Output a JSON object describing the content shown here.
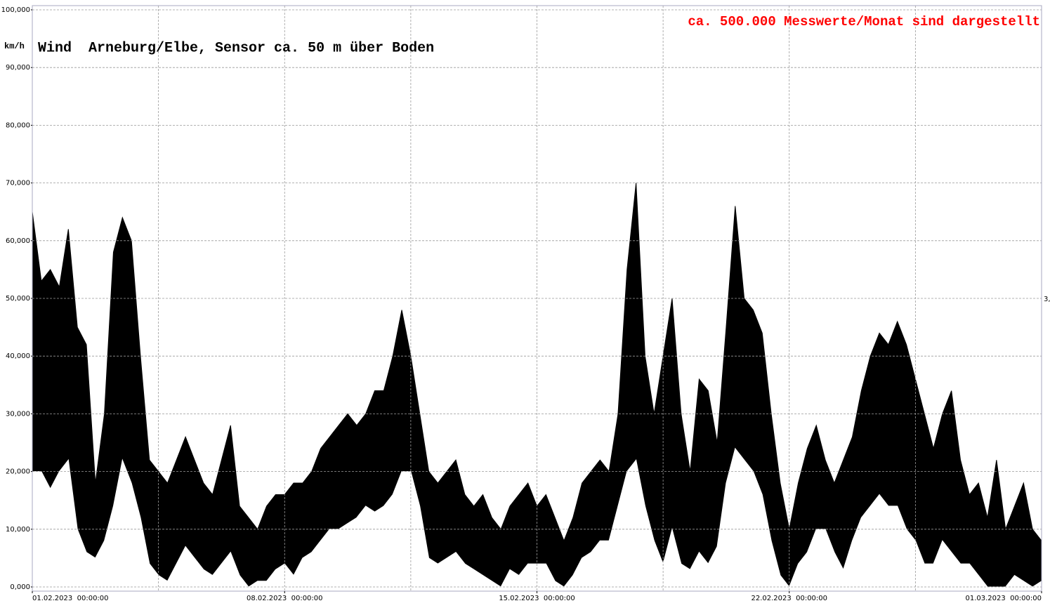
{
  "chart_data": {
    "type": "range",
    "title": "Wind  Arneburg/Elbe, Sensor ca. 50 m über Boden",
    "y_label": "km/h",
    "annotation": "ca. 500.000 Messwerte/Monat sind dargestellt",
    "right_label": "3,",
    "color": "#000000",
    "xlim": [
      0,
      28
    ],
    "xgrid_step": 3.5,
    "xticks": [
      {
        "value": 0,
        "label": "01.02.2023  00:00:00"
      },
      {
        "value": 7,
        "label": "08.02.2023  00:00:00"
      },
      {
        "value": 14,
        "label": "15.02.2023  00:00:00"
      },
      {
        "value": 21,
        "label": "22.02.2023  00:00:00"
      },
      {
        "value": 28,
        "label": "01.03.2023  00:00:00"
      }
    ],
    "ylim": [
      0,
      100
    ],
    "yticks": [
      {
        "value": 0,
        "label": "0,000"
      },
      {
        "value": 10,
        "label": "10,000"
      },
      {
        "value": 20,
        "label": "20,000"
      },
      {
        "value": 30,
        "label": "30,000"
      },
      {
        "value": 40,
        "label": "40,000"
      },
      {
        "value": 50,
        "label": "50,000"
      },
      {
        "value": 60,
        "label": "60,000"
      },
      {
        "value": 70,
        "label": "70,000"
      },
      {
        "value": 80,
        "label": "80,000"
      },
      {
        "value": 90,
        "label": "90,000"
      },
      {
        "value": 100,
        "label": "100,000"
      }
    ],
    "grid": true,
    "x": [
      0,
      0.25,
      0.5,
      0.75,
      1,
      1.25,
      1.5,
      1.75,
      2,
      2.25,
      2.5,
      2.75,
      3,
      3.25,
      3.5,
      3.75,
      4,
      4.25,
      4.5,
      4.75,
      5,
      5.25,
      5.5,
      5.75,
      6,
      6.25,
      6.5,
      6.75,
      7,
      7.25,
      7.5,
      7.75,
      8,
      8.25,
      8.5,
      8.75,
      9,
      9.25,
      9.5,
      9.75,
      10,
      10.25,
      10.5,
      10.75,
      11,
      11.25,
      11.5,
      11.75,
      12,
      12.25,
      12.5,
      12.75,
      13,
      13.25,
      13.5,
      13.75,
      14,
      14.25,
      14.5,
      14.75,
      15,
      15.25,
      15.5,
      15.75,
      16,
      16.25,
      16.5,
      16.75,
      17,
      17.25,
      17.5,
      17.75,
      18,
      18.25,
      18.5,
      18.75,
      19,
      19.25,
      19.5,
      19.75,
      20,
      20.25,
      20.5,
      20.75,
      21,
      21.25,
      21.5,
      21.75,
      22,
      22.25,
      22.5,
      22.75,
      23,
      23.25,
      23.5,
      23.75,
      24,
      24.25,
      24.5,
      24.75,
      25,
      25.25,
      25.5,
      25.75,
      26,
      26.25,
      26.5,
      26.75,
      27,
      27.25,
      27.5,
      27.75,
      28
    ],
    "high": [
      65,
      53,
      55,
      52,
      62,
      45,
      42,
      18,
      30,
      58,
      64,
      60,
      40,
      22,
      20,
      18,
      22,
      26,
      22,
      18,
      16,
      22,
      28,
      14,
      12,
      10,
      14,
      16,
      16,
      18,
      18,
      20,
      24,
      26,
      28,
      30,
      28,
      30,
      34,
      34,
      40,
      48,
      40,
      30,
      20,
      18,
      20,
      22,
      16,
      14,
      16,
      12,
      10,
      14,
      16,
      18,
      14,
      16,
      12,
      8,
      12,
      18,
      20,
      22,
      20,
      30,
      55,
      70,
      40,
      30,
      40,
      50,
      30,
      20,
      36,
      34,
      25,
      45,
      66,
      50,
      48,
      44,
      30,
      18,
      10,
      18,
      24,
      28,
      22,
      18,
      22,
      26,
      34,
      40,
      44,
      42,
      46,
      42,
      36,
      30,
      24,
      30,
      34,
      22,
      16,
      18,
      12,
      22,
      10,
      14,
      18,
      10,
      8
    ],
    "low": [
      20,
      20,
      17,
      20,
      22,
      10,
      6,
      5,
      8,
      14,
      22,
      18,
      12,
      4,
      2,
      1,
      4,
      7,
      5,
      3,
      2,
      4,
      6,
      2,
      0,
      1,
      1,
      3,
      4,
      2,
      5,
      6,
      8,
      10,
      10,
      11,
      12,
      14,
      13,
      14,
      16,
      20,
      20,
      14,
      5,
      4,
      5,
      6,
      4,
      3,
      2,
      1,
      0,
      3,
      2,
      4,
      4,
      4,
      1,
      0,
      2,
      5,
      6,
      8,
      8,
      14,
      20,
      22,
      14,
      8,
      4,
      10,
      4,
      3,
      6,
      4,
      7,
      18,
      24,
      22,
      20,
      16,
      8,
      2,
      0,
      4,
      6,
      10,
      10,
      6,
      3,
      8,
      12,
      14,
      16,
      14,
      14,
      10,
      8,
      4,
      4,
      8,
      6,
      4,
      4,
      2,
      0,
      0,
      0,
      2,
      1,
      0,
      1
    ]
  }
}
